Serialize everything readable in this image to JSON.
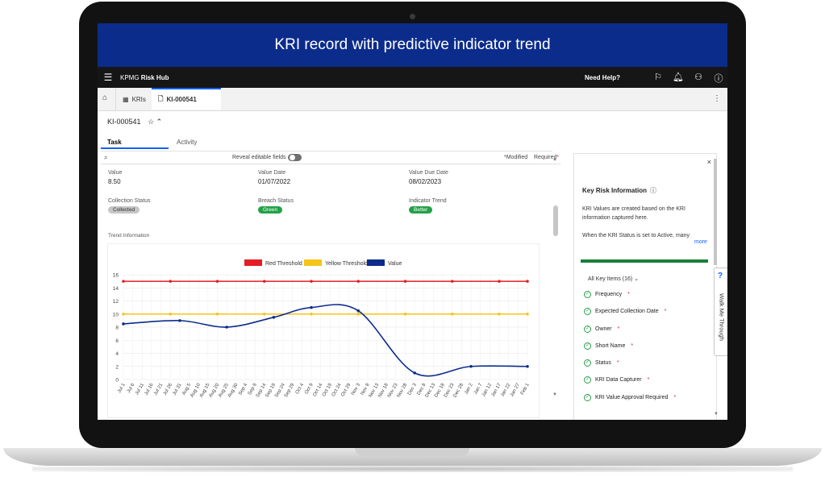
{
  "banner": {
    "title": "KRI record with predictive indicator trend"
  },
  "topbar": {
    "menu_icon": "menu-icon",
    "brand_prefix": "KPMG",
    "brand_name": "Risk Hub",
    "help_label": "Need Help?",
    "icons": [
      "signpost-icon",
      "bell-icon",
      "user-icon",
      "help-icon"
    ]
  },
  "tabs": {
    "home_icon": "home-icon",
    "items": [
      {
        "label": "KRIs",
        "icon": "table-icon"
      },
      {
        "label": "KI-000541",
        "icon": "document-icon"
      }
    ]
  },
  "record": {
    "id": "KI-000541"
  },
  "subtabs": [
    {
      "label": "Task"
    },
    {
      "label": "Activity"
    }
  ],
  "toolbar": {
    "reveal_label": "Reveal editable fields",
    "modified_label": "*Modified",
    "required_label": "Required",
    "required_marker": "*"
  },
  "fields": {
    "value": {
      "label": "Value",
      "value": "8.50"
    },
    "value_date": {
      "label": "Value Date",
      "value": "01/07/2022"
    },
    "value_due_date": {
      "label": "Value Due Date",
      "value": "08/02/2023"
    },
    "collection_status": {
      "label": "Collection Status",
      "value": "Collected"
    },
    "breach_status": {
      "label": "Breach Status",
      "value": "Green"
    },
    "indicator_trend": {
      "label": "Indicator Trend",
      "value": "Better"
    }
  },
  "trend_label": "Trend Information",
  "chart_data": {
    "type": "line",
    "title": "",
    "xlabel": "",
    "ylabel": "",
    "ylim": [
      0,
      16
    ],
    "yticks": [
      0,
      2,
      4,
      6,
      8,
      10,
      12,
      14,
      16
    ],
    "grid": true,
    "legend_position": "top",
    "categories": [
      "Jul 1",
      "Jul 6",
      "Jul 11",
      "Jul 16",
      "Jul 21",
      "Jul 26",
      "Jul 31",
      "Aug 5",
      "Aug 10",
      "Aug 15",
      "Aug 20",
      "Aug 25",
      "Aug 30",
      "Sep 4",
      "Sep 9",
      "Sep 14",
      "Sep 19",
      "Sep 24",
      "Sep 29",
      "Oct 4",
      "Oct 9",
      "Oct 14",
      "Oct 19",
      "Oct 24",
      "Oct 29",
      "Nov 3",
      "Nov 8",
      "Nov 13",
      "Nov 18",
      "Nov 23",
      "Nov 28",
      "Dec 3",
      "Dec 8",
      "Dec 13",
      "Dec 18",
      "Dec 23",
      "Dec 28",
      "Jan 2",
      "Jan 7",
      "Jan 12",
      "Jan 17",
      "Jan 22",
      "Jan 27",
      "Feb 1"
    ],
    "series": [
      {
        "name": "Red Threshold",
        "color": "#e31e24",
        "x": [
          0,
          5,
          10,
          15,
          20,
          25,
          30,
          35,
          40,
          43
        ],
        "values": [
          15,
          15,
          15,
          15,
          15,
          15,
          15,
          15,
          15,
          15
        ]
      },
      {
        "name": "Yellow Threshold",
        "color": "#f5c518",
        "x": [
          0,
          5,
          10,
          15,
          20,
          25,
          30,
          35,
          40,
          43
        ],
        "values": [
          10,
          10,
          10,
          10,
          10,
          10,
          10,
          10,
          10,
          10
        ]
      },
      {
        "name": "Value",
        "color": "#0c2c8c",
        "x": [
          0,
          6,
          11,
          16,
          20,
          25,
          31,
          37,
          43
        ],
        "values": [
          8.5,
          9,
          8,
          9.5,
          11,
          10.5,
          1,
          2,
          2
        ]
      }
    ]
  },
  "panel": {
    "title": "Key Risk Information",
    "description": "KRI Values are created based on the KRI information captured here.",
    "note": "When the KRI Status is set to Active, many",
    "more_label": "more",
    "all_items_label": "All Key Items (16)",
    "items": [
      {
        "label": "Frequency",
        "required": "*"
      },
      {
        "label": "Expected Collection Date",
        "required": "*"
      },
      {
        "label": "Owner",
        "required": "*"
      },
      {
        "label": "Short Name",
        "required": "*"
      },
      {
        "label": "Status",
        "required": "*"
      },
      {
        "label": "KRI Data Capturer",
        "required": "*"
      },
      {
        "label": "KRI Value Approval Required",
        "required": "*"
      }
    ]
  },
  "walkme": {
    "label": "Walk Me Through",
    "icon": "question-icon"
  }
}
